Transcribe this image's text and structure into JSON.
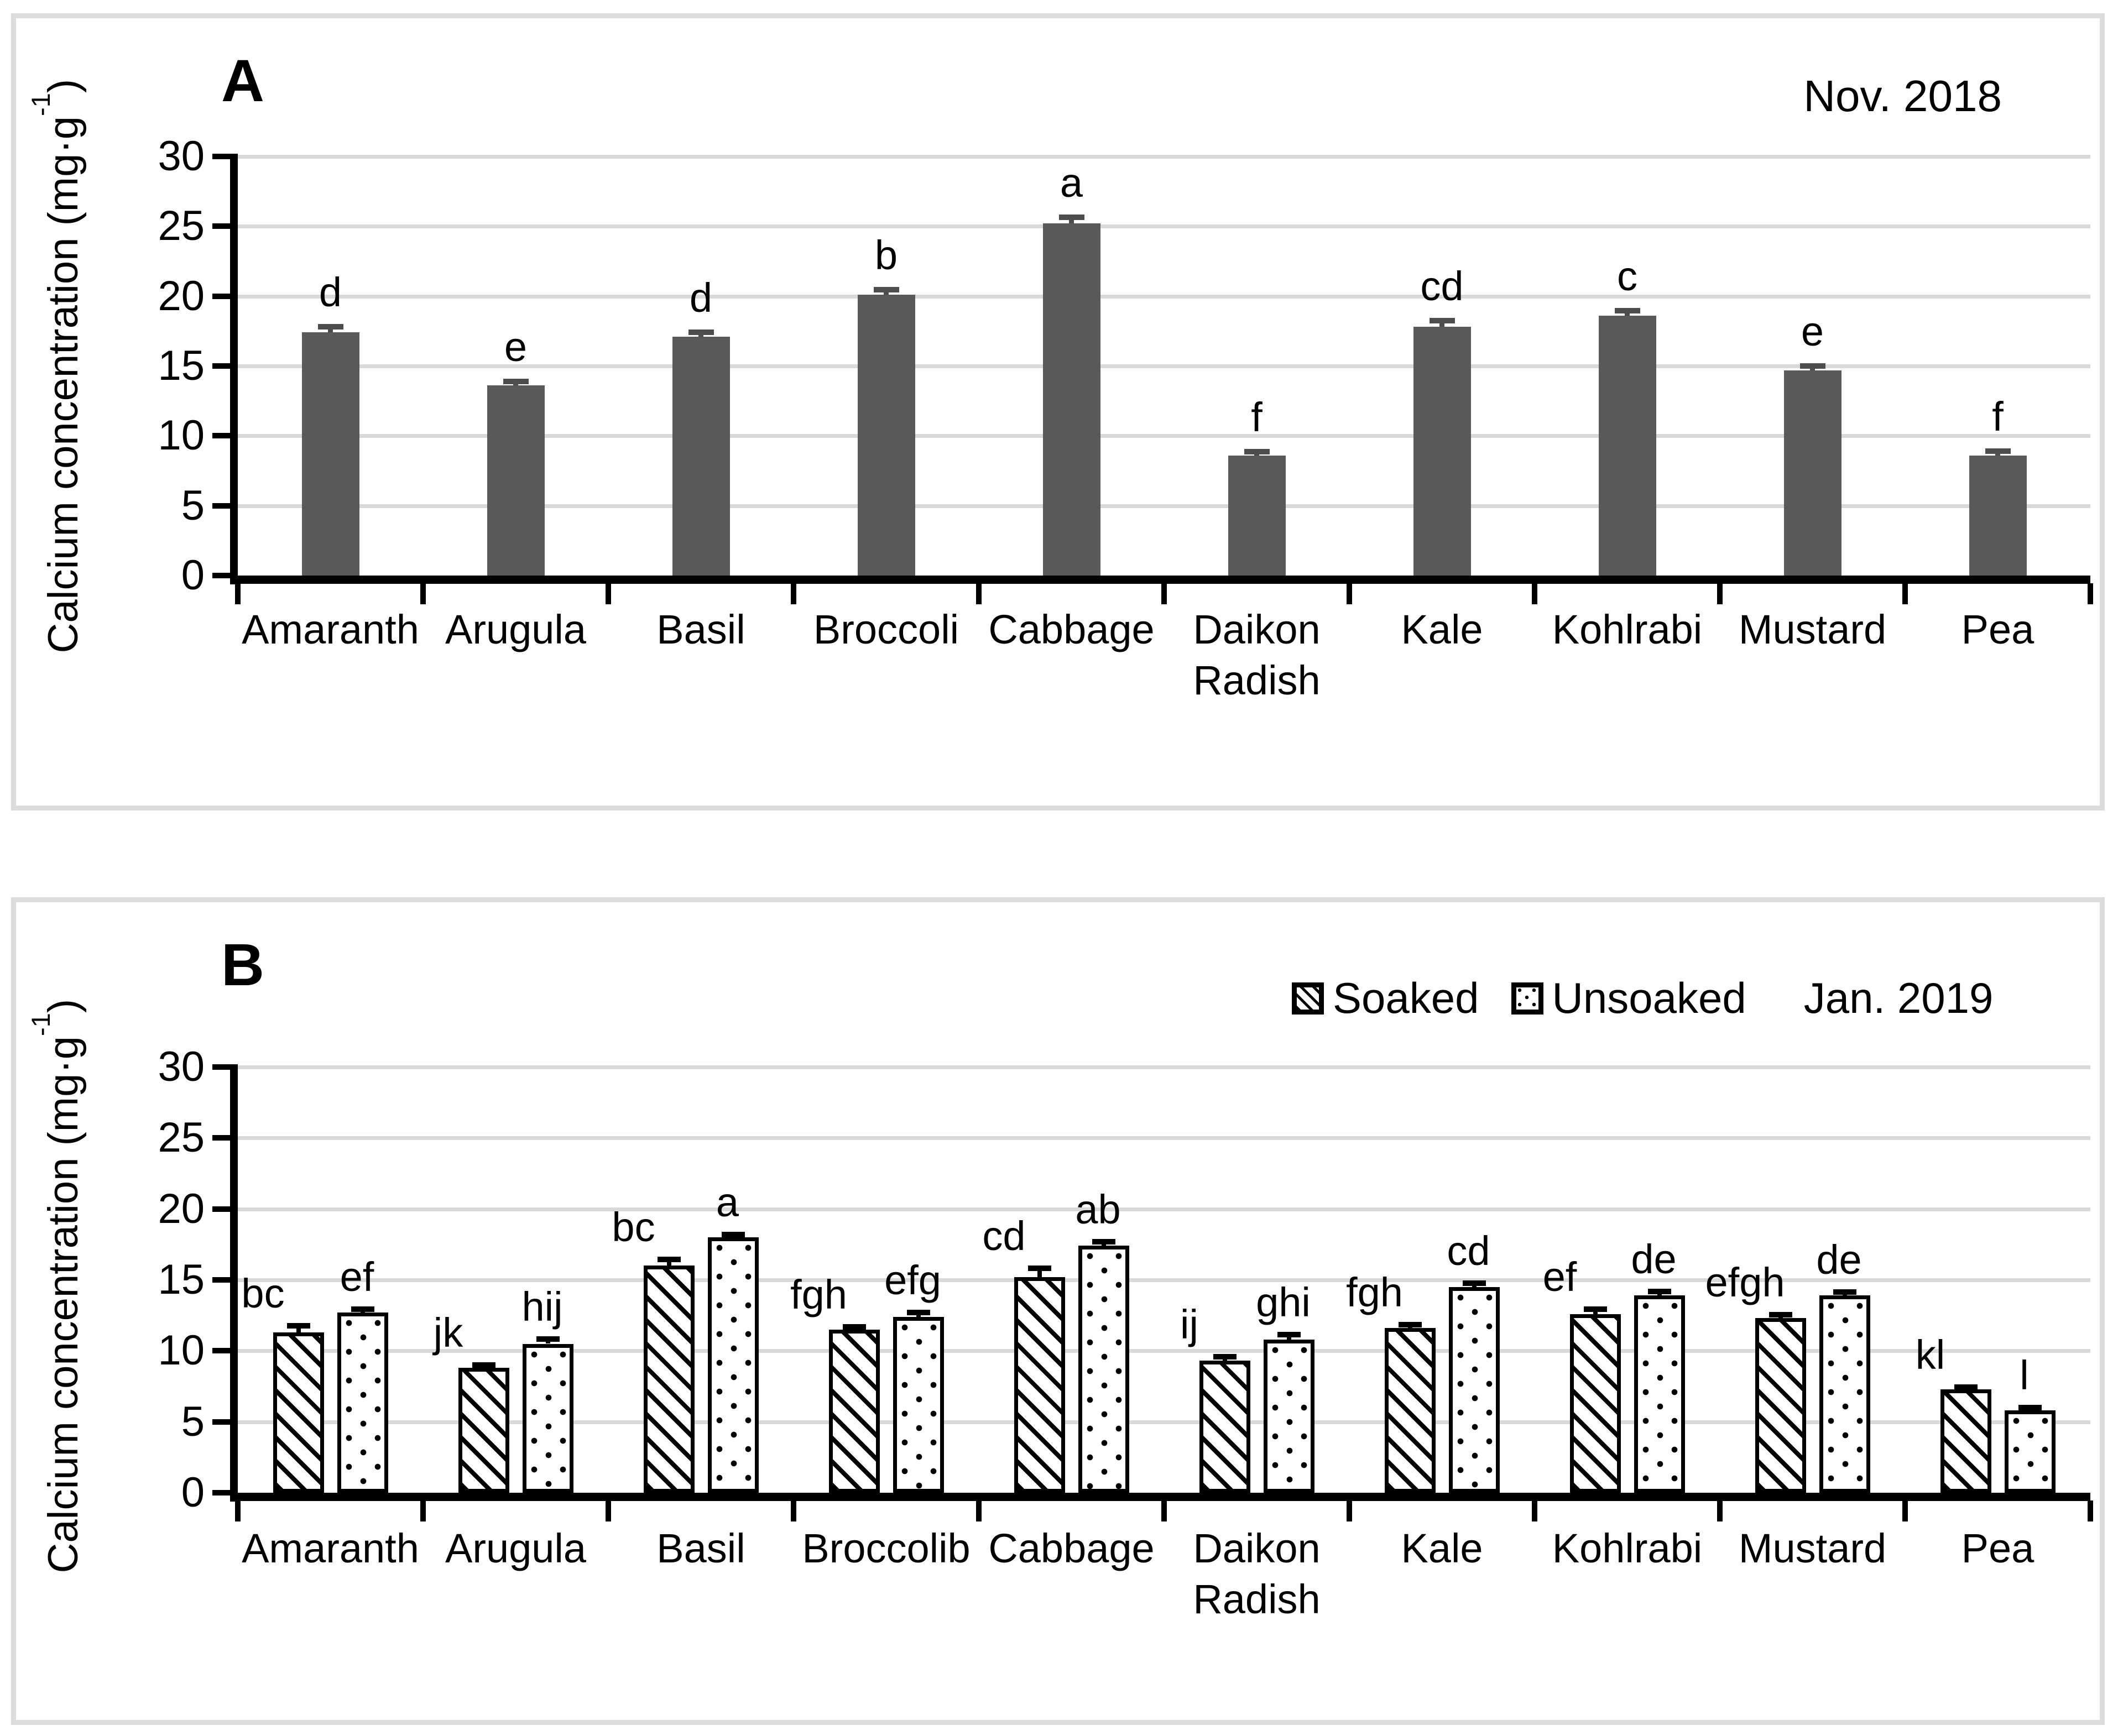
{
  "panels": {
    "a": {
      "letter": "A",
      "title": "Nov. 2018",
      "ylabel_pre": "Calcium concentration (mg·g",
      "ylabel_sup": "-1",
      "ylabel_post": ")"
    },
    "b": {
      "letter": "B",
      "title": "Jan. 2019",
      "ylabel_pre": "Calcium concentration (mg·g",
      "ylabel_sup": "-1",
      "ylabel_post": ")",
      "legend": [
        {
          "name": "Soaked",
          "pattern": "diagonal-hatch"
        },
        {
          "name": "Unsoaked",
          "pattern": "dots"
        }
      ]
    }
  },
  "colors": {
    "bar_solid": "#595959",
    "gridline": "#d9d9d9",
    "axis": "#000000",
    "panel_border": "#dcdcdc",
    "error_bar_a": "#4d4d4d",
    "error_bar_b": "#000000"
  },
  "chart_data": [
    {
      "id": "A",
      "type": "bar",
      "title": "Nov. 2018",
      "ylabel": "Calcium concentration (mg·g-1)",
      "ylim": [
        0,
        30
      ],
      "yticks": [
        0,
        5,
        10,
        15,
        20,
        25,
        30
      ],
      "grid": true,
      "legend_position": "none",
      "categories": [
        "Amaranth",
        "Arugula",
        "Basil",
        "Broccoli",
        "Cabbage",
        "Daikon\nRadish",
        "Kale",
        "Kohlrabi",
        "Mustard",
        "Pea"
      ],
      "values": [
        17.4,
        13.6,
        17.1,
        20.1,
        25.2,
        8.6,
        17.8,
        18.6,
        14.7,
        8.6
      ],
      "errors": [
        0.4,
        0.3,
        0.3,
        0.35,
        0.45,
        0.25,
        0.45,
        0.35,
        0.3,
        0.3
      ],
      "sig_letters": [
        "d",
        "e",
        "d",
        "b",
        "a",
        "f",
        "cd",
        "c",
        "e",
        "f"
      ]
    },
    {
      "id": "B",
      "type": "bar",
      "title": "Jan. 2019",
      "ylabel": "Calcium concentration (mg·g-1)",
      "ylim": [
        0,
        30
      ],
      "yticks": [
        0,
        5,
        10,
        15,
        20,
        25,
        30
      ],
      "grid": true,
      "legend_position": "top-right",
      "categories": [
        "Amaranth",
        "Arugula",
        "Basil",
        "Broccolib",
        "Cabbage",
        "Daikon\nRadish",
        "Kale",
        "Kohlrabi",
        "Mustard",
        "Pea"
      ],
      "series": [
        {
          "name": "Soaked",
          "pattern": "diagonal-hatch",
          "values": [
            11.3,
            8.8,
            16.0,
            11.5,
            15.2,
            9.3,
            11.6,
            12.6,
            12.3,
            7.3
          ],
          "errors": [
            0.45,
            0.2,
            0.45,
            0.2,
            0.6,
            0.3,
            0.25,
            0.35,
            0.25,
            0.15
          ],
          "sig_letters": [
            "bc",
            "jk",
            "bc",
            "fgh",
            "cd",
            "ij",
            "fgh",
            "ef",
            "efgh",
            "kl"
          ]
        },
        {
          "name": "Unsoaked",
          "pattern": "dots",
          "values": [
            12.7,
            10.5,
            18.0,
            12.4,
            17.4,
            10.8,
            14.5,
            13.9,
            13.9,
            5.8
          ],
          "errors": [
            0.25,
            0.35,
            0.2,
            0.3,
            0.3,
            0.35,
            0.25,
            0.3,
            0.25,
            0.2
          ],
          "sig_letters": [
            "ef",
            "hij",
            "a",
            "efg",
            "ab",
            "ghi",
            "cd",
            "de",
            "de",
            "l"
          ]
        }
      ]
    }
  ]
}
